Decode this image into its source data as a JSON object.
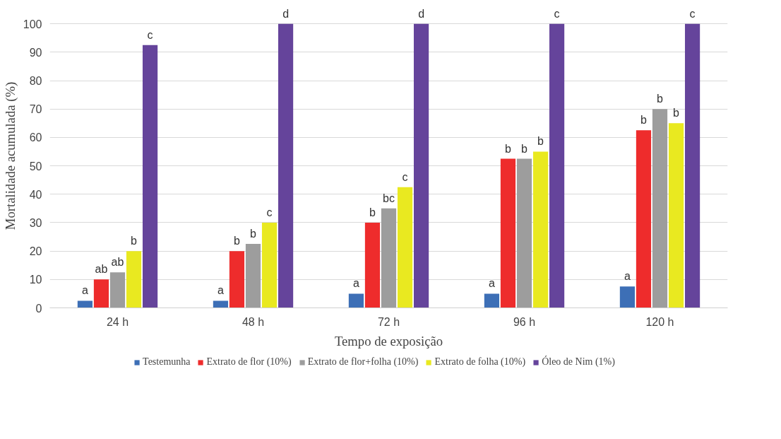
{
  "chart_data": {
    "type": "bar",
    "xlabel": "Tempo de exposição",
    "ylabel": "Mortalidade acumulada (%)",
    "categories": [
      "24 h",
      "48 h",
      "72 h",
      "96 h",
      "120 h"
    ],
    "series": [
      {
        "name": "Testemunha",
        "color": "#3d6fb6",
        "values": [
          2.5,
          2.5,
          5,
          5,
          7.5
        ],
        "value_labels": [
          "a",
          "a",
          "a",
          "a",
          "a"
        ]
      },
      {
        "name": "Extrato de flor (10%)",
        "color": "#ee2c2c",
        "values": [
          10,
          20,
          30,
          52.5,
          62.5
        ],
        "value_labels": [
          "ab",
          "b",
          "b",
          "b",
          "b"
        ]
      },
      {
        "name": "Extrato de flor+folha (10%)",
        "color": "#9d9d9d",
        "values": [
          12.5,
          22.5,
          35,
          52.5,
          70
        ],
        "value_labels": [
          "ab",
          "b",
          "bc",
          "b",
          "b"
        ]
      },
      {
        "name": "Extrato de folha (10%)",
        "color": "#e9e920",
        "values": [
          20,
          30,
          42.5,
          55,
          65
        ],
        "value_labels": [
          "b",
          "c",
          "c",
          "b",
          "b"
        ]
      },
      {
        "name": "Óleo de Nim (1%)",
        "color": "#65449b",
        "values": [
          92.5,
          100,
          100,
          100,
          100
        ],
        "value_labels": [
          "c",
          "d",
          "d",
          "c",
          "c"
        ]
      }
    ],
    "ylim": [
      0,
      100
    ],
    "yticks": [
      0,
      10,
      20,
      30,
      40,
      50,
      60,
      70,
      80,
      90,
      100
    ],
    "grid": "y",
    "legend": "bottom"
  }
}
